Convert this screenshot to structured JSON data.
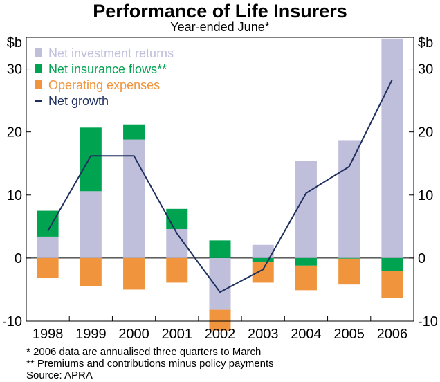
{
  "chart_data": {
    "type": "bar",
    "title": "Performance of Life Insurers",
    "subtitle": "Year-ended June*",
    "ylabel_left": "$b",
    "ylabel_right": "$b",
    "ylim": [
      -10,
      35
    ],
    "yticks": [
      -10,
      0,
      10,
      20,
      30
    ],
    "categories": [
      "1998",
      "1999",
      "2000",
      "2001",
      "2002",
      "2003",
      "2004",
      "2005",
      "2006"
    ],
    "series": [
      {
        "name": "Net investment returns",
        "kind": "bar",
        "color": "#bfbedb",
        "values": [
          3.4,
          10.6,
          18.8,
          4.6,
          -8.2,
          2.1,
          15.4,
          18.6,
          34.8
        ]
      },
      {
        "name": "Net insurance flows**",
        "kind": "bar",
        "color": "#00a34f",
        "values": [
          4.1,
          10.1,
          2.4,
          3.2,
          2.8,
          -0.6,
          -1.2,
          -0.1,
          -2.0
        ]
      },
      {
        "name": "Operating expenses",
        "kind": "bar",
        "color": "#f0953d",
        "values": [
          -3.2,
          -4.5,
          -5.0,
          -3.9,
          -3.3,
          -3.3,
          -3.9,
          -4.1,
          -4.3
        ]
      },
      {
        "name": "Net growth",
        "kind": "line",
        "color": "#1e2f5e",
        "values": [
          4.3,
          16.2,
          16.2,
          3.9,
          -5.4,
          -1.8,
          10.3,
          14.5,
          28.3
        ]
      }
    ],
    "footnotes": [
      "*  2006 data are annualised three quarters to March",
      "** Premiums and contributions minus policy payments",
      "Source: APRA"
    ]
  }
}
